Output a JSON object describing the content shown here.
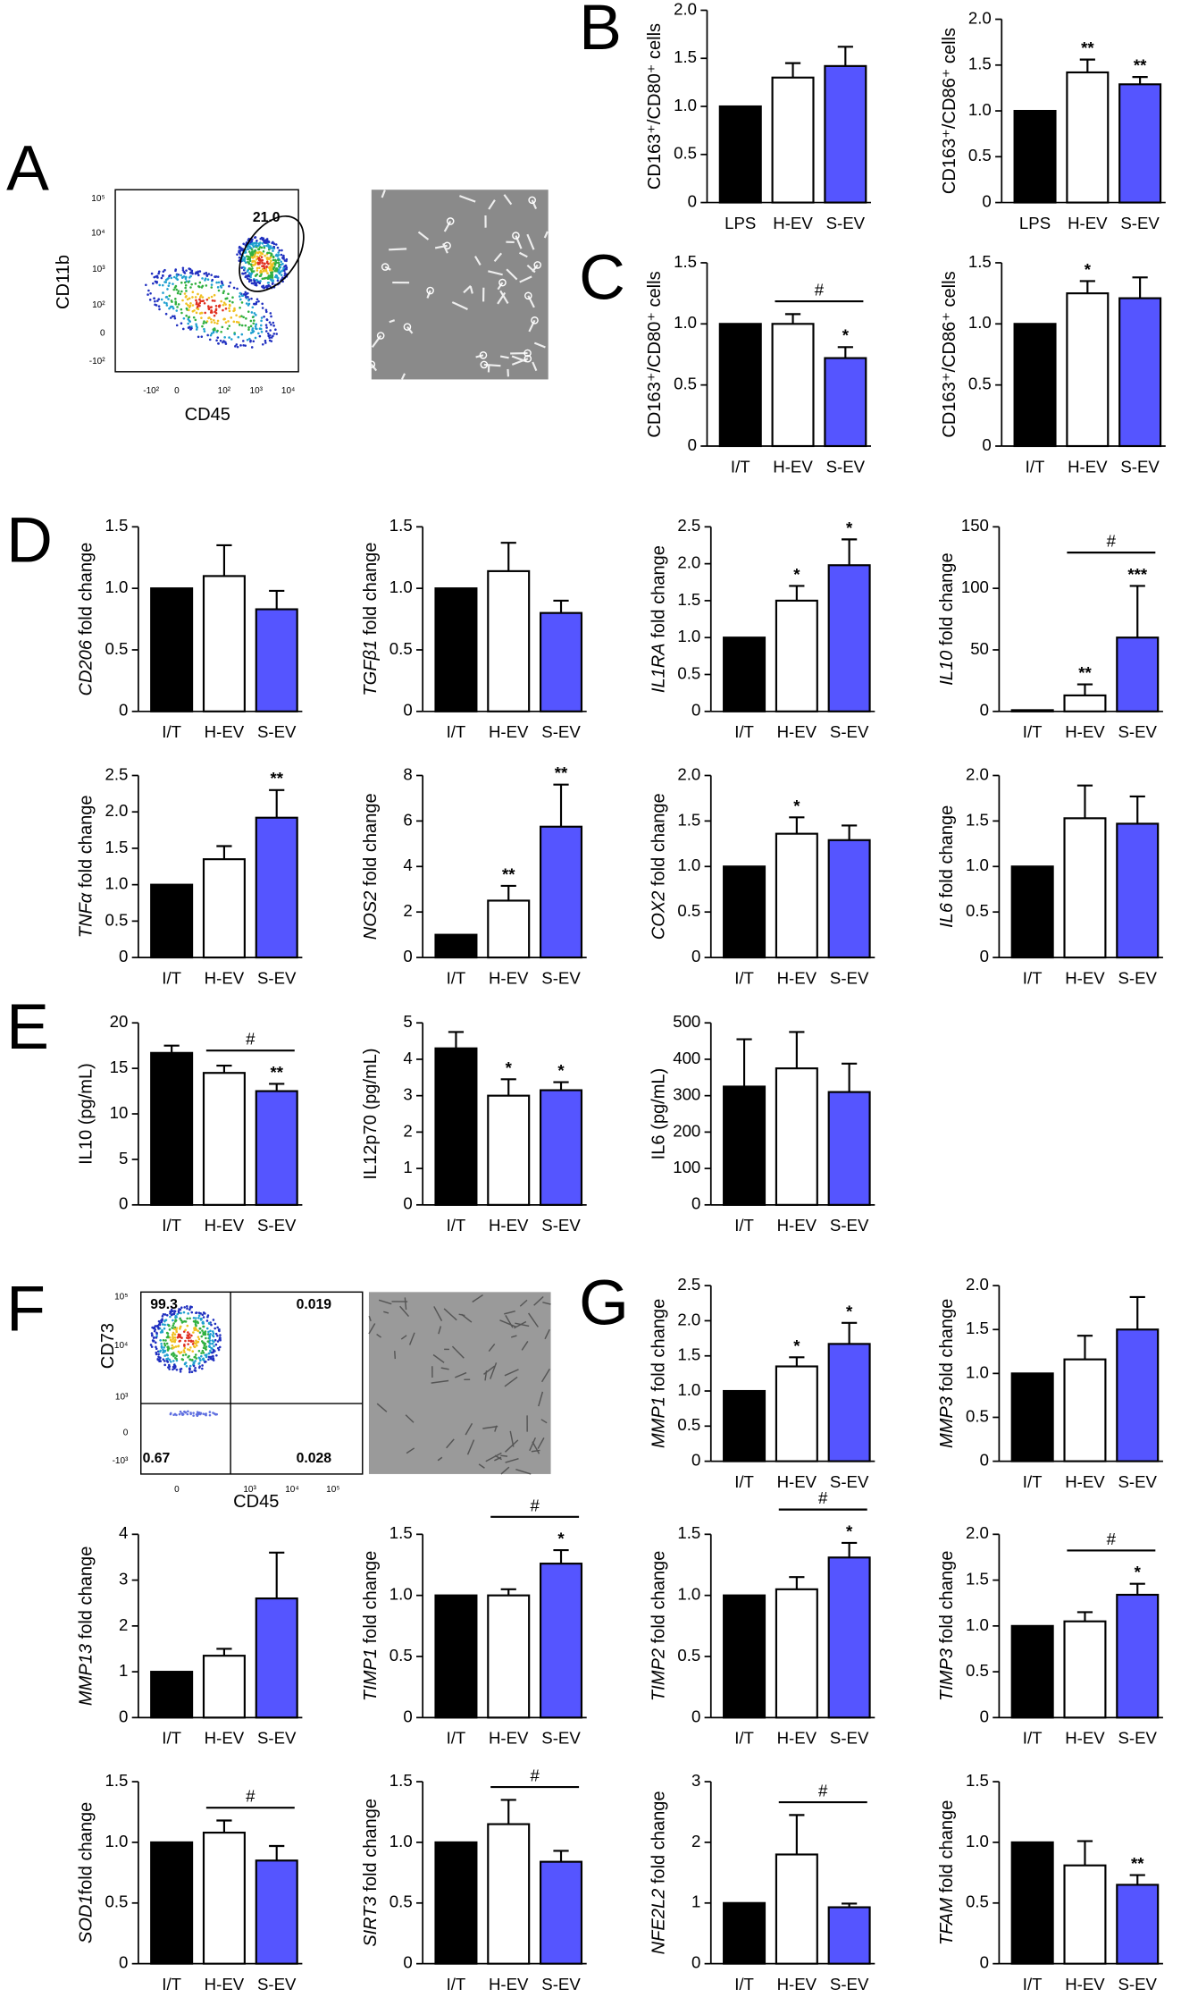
{
  "panel_labels": {
    "A": "A",
    "B": "B",
    "C": "C",
    "D": "D",
    "E": "E",
    "F": "F",
    "G": "G"
  },
  "flow_plots": [
    {
      "xlabel": "CD45",
      "ylabel": "CD11b",
      "xticks": [
        "-10²",
        "0",
        "10²",
        "10³",
        "10⁴"
      ],
      "yticks": [
        "10⁵",
        "10⁴",
        "10³",
        "10²",
        "0",
        "-10²"
      ],
      "gates": [
        "21.0"
      ]
    },
    {
      "xlabel": "CD45",
      "ylabel": "CD73",
      "xticks": [
        "0",
        "10³",
        "10⁴",
        "10⁵"
      ],
      "yticks": [
        "10⁵",
        "10⁴",
        "10³",
        "0",
        "-10³"
      ],
      "gates": [
        "99.3",
        "0.019",
        "0.67",
        "0.028"
      ]
    }
  ],
  "chart_data": [
    {
      "type": "bar",
      "ylabel": [
        "CD163⁺/CD80⁺ cells"
      ],
      "ylabel_italic": false,
      "categories": [
        "LPS",
        "H-EV",
        "S-EV"
      ],
      "values": [
        1.0,
        1.3,
        1.42
      ],
      "errors": [
        null,
        0.15,
        0.2
      ],
      "stars": [
        null,
        null,
        null
      ],
      "colors": [
        "#000000",
        "#ffffff",
        "#5555ff"
      ],
      "ylim": [
        0,
        2
      ],
      "yticks": [
        0,
        0.5,
        {
          "value": 1,
          "label": "1.0"
        },
        1.5,
        {
          "value": 2,
          "label": "2.0"
        }
      ]
    },
    {
      "type": "bar",
      "ylabel": [
        "CD163⁺/CD86⁺ cells"
      ],
      "ylabel_italic": false,
      "categories": [
        "LPS",
        "H-EV",
        "S-EV"
      ],
      "values": [
        1.0,
        1.42,
        1.29
      ],
      "errors": [
        null,
        0.14,
        0.08
      ],
      "stars": [
        null,
        "**",
        "**"
      ],
      "colors": [
        "#000000",
        "#ffffff",
        "#5555ff"
      ],
      "ylim": [
        0,
        2
      ],
      "yticks": [
        0,
        0.5,
        {
          "value": 1,
          "label": "1.0"
        },
        1.5,
        {
          "value": 2,
          "label": "2.0"
        }
      ]
    },
    {
      "type": "bar",
      "ylabel": [
        "CD163⁺/CD80⁺ cells"
      ],
      "ylabel_italic": false,
      "categories": [
        "I/T",
        "H-EV",
        "S-EV"
      ],
      "values": [
        1.0,
        1.0,
        0.72
      ],
      "errors": [
        null,
        0.08,
        0.09
      ],
      "stars": [
        null,
        null,
        "*"
      ],
      "bracket_label": "#",
      "colors": [
        "#000000",
        "#ffffff",
        "#5555ff"
      ],
      "ylim": [
        0,
        1.5
      ],
      "yticks": [
        0,
        0.5,
        {
          "value": 1,
          "label": "1.0"
        },
        1.5
      ]
    },
    {
      "type": "bar",
      "ylabel": [
        "CD163⁺/CD86⁺ cells"
      ],
      "ylabel_italic": false,
      "categories": [
        "I/T",
        "H-EV",
        "S-EV"
      ],
      "values": [
        1.0,
        1.25,
        1.21
      ],
      "errors": [
        null,
        0.1,
        0.17
      ],
      "stars": [
        null,
        "*",
        null
      ],
      "colors": [
        "#000000",
        "#ffffff",
        "#5555ff"
      ],
      "ylim": [
        0,
        1.5
      ],
      "yticks": [
        0,
        0.5,
        {
          "value": 1,
          "label": "1.0"
        },
        1.5
      ]
    },
    {
      "type": "bar",
      "ylabel": [
        "CD206",
        " fold change"
      ],
      "ylabel_italic": true,
      "categories": [
        "I/T",
        "H-EV",
        "S-EV"
      ],
      "values": [
        1.0,
        1.1,
        0.83
      ],
      "errors": [
        null,
        0.25,
        0.15
      ],
      "stars": [
        null,
        null,
        null
      ],
      "colors": [
        "#000000",
        "#ffffff",
        "#5555ff"
      ],
      "ylim": [
        0,
        1.5
      ],
      "yticks": [
        0,
        0.5,
        {
          "value": 1,
          "label": "1.0"
        },
        1.5
      ]
    },
    {
      "type": "bar",
      "ylabel": [
        "TGFβ1",
        " fold change"
      ],
      "ylabel_italic": true,
      "categories": [
        "I/T",
        "H-EV",
        "S-EV"
      ],
      "values": [
        1.0,
        1.14,
        0.8
      ],
      "errors": [
        null,
        0.23,
        0.1
      ],
      "stars": [
        null,
        null,
        null
      ],
      "colors": [
        "#000000",
        "#ffffff",
        "#5555ff"
      ],
      "ylim": [
        0,
        1.5
      ],
      "yticks": [
        0,
        0.5,
        {
          "value": 1,
          "label": "1.0"
        },
        1.5
      ]
    },
    {
      "type": "bar",
      "ylabel": [
        "IL1RA",
        " fold change"
      ],
      "ylabel_italic": true,
      "categories": [
        "I/T",
        "H-EV",
        "S-EV"
      ],
      "values": [
        1.0,
        1.5,
        1.98
      ],
      "errors": [
        null,
        0.2,
        0.35
      ],
      "stars": [
        null,
        "*",
        "*"
      ],
      "colors": [
        "#000000",
        "#ffffff",
        "#5555ff"
      ],
      "ylim": [
        0,
        2.5
      ],
      "yticks": [
        0,
        0.5,
        {
          "value": 1,
          "label": "1.0"
        },
        1.5,
        {
          "value": 2,
          "label": "2.0"
        },
        2.5
      ]
    },
    {
      "type": "bar",
      "ylabel": [
        "IL10",
        " fold change"
      ],
      "ylabel_italic": true,
      "categories": [
        "I/T",
        "H-EV",
        "S-EV"
      ],
      "values": [
        1,
        13,
        60
      ],
      "errors": [
        null,
        9,
        42
      ],
      "stars": [
        null,
        "**",
        "***"
      ],
      "bracket_label": "#",
      "colors": [
        "#000000",
        "#ffffff",
        "#5555ff"
      ],
      "ylim": [
        0,
        150
      ],
      "yticks": [
        0,
        50,
        100,
        150
      ]
    },
    {
      "type": "bar",
      "ylabel": [
        "TNFα",
        " fold change"
      ],
      "ylabel_italic": true,
      "categories": [
        "I/T",
        "H-EV",
        "S-EV"
      ],
      "values": [
        1.0,
        1.35,
        1.92
      ],
      "errors": [
        null,
        0.18,
        0.38
      ],
      "stars": [
        null,
        null,
        "**"
      ],
      "colors": [
        "#000000",
        "#ffffff",
        "#5555ff"
      ],
      "ylim": [
        0,
        2.5
      ],
      "yticks": [
        0,
        0.5,
        {
          "value": 1,
          "label": "1.0"
        },
        1.5,
        {
          "value": 2,
          "label": "2.0"
        },
        2.5
      ]
    },
    {
      "type": "bar",
      "ylabel": [
        "NOS2",
        " fold change"
      ],
      "ylabel_italic": true,
      "categories": [
        "I/T",
        "H-EV",
        "S-EV"
      ],
      "values": [
        1,
        2.5,
        5.75
      ],
      "errors": [
        null,
        0.65,
        1.85
      ],
      "stars": [
        null,
        "**",
        "**"
      ],
      "colors": [
        "#000000",
        "#ffffff",
        "#5555ff"
      ],
      "ylim": [
        0,
        8
      ],
      "yticks": [
        0,
        2,
        4,
        6,
        8
      ]
    },
    {
      "type": "bar",
      "ylabel": [
        "COX2",
        " fold change"
      ],
      "ylabel_italic": true,
      "categories": [
        "I/T",
        "H-EV",
        "S-EV"
      ],
      "values": [
        1.0,
        1.36,
        1.29
      ],
      "errors": [
        null,
        0.18,
        0.16
      ],
      "stars": [
        null,
        "*",
        null
      ],
      "colors": [
        "#000000",
        "#ffffff",
        "#5555ff"
      ],
      "ylim": [
        0,
        2
      ],
      "yticks": [
        0,
        0.5,
        {
          "value": 1,
          "label": "1.0"
        },
        1.5,
        {
          "value": 2,
          "label": "2.0"
        }
      ]
    },
    {
      "type": "bar",
      "ylabel": [
        "IL6",
        " fold change"
      ],
      "ylabel_italic": true,
      "categories": [
        "I/T",
        "H-EV",
        "S-EV"
      ],
      "values": [
        1.0,
        1.53,
        1.47
      ],
      "errors": [
        null,
        0.36,
        0.3
      ],
      "stars": [
        null,
        null,
        null
      ],
      "colors": [
        "#000000",
        "#ffffff",
        "#5555ff"
      ],
      "ylim": [
        0,
        2
      ],
      "yticks": [
        0,
        0.5,
        {
          "value": 1,
          "label": "1.0"
        },
        1.5,
        {
          "value": 2,
          "label": "2.0"
        }
      ]
    },
    {
      "type": "bar",
      "ylabel": [
        "IL10 (pg/mL)"
      ],
      "ylabel_italic": false,
      "categories": [
        "I/T",
        "H-EV",
        "S-EV"
      ],
      "values": [
        16.7,
        14.5,
        12.5
      ],
      "errors": [
        0.8,
        0.8,
        0.8
      ],
      "stars": [
        null,
        null,
        "**"
      ],
      "bracket_label": "#",
      "colors": [
        "#000000",
        "#ffffff",
        "#5555ff"
      ],
      "ylim": [
        0,
        20
      ],
      "yticks": [
        0,
        5,
        10,
        15,
        20
      ]
    },
    {
      "type": "bar",
      "ylabel": [
        "IL12p70 (pg/mL)"
      ],
      "ylabel_italic": false,
      "categories": [
        "I/T",
        "H-EV",
        "S-EV"
      ],
      "values": [
        4.3,
        3.0,
        3.15
      ],
      "errors": [
        0.45,
        0.45,
        0.22
      ],
      "stars": [
        null,
        "*",
        "*"
      ],
      "colors": [
        "#000000",
        "#ffffff",
        "#5555ff"
      ],
      "ylim": [
        0,
        5
      ],
      "yticks": [
        0,
        1,
        2,
        3,
        4,
        5
      ]
    },
    {
      "type": "bar",
      "ylabel": [
        "IL6 (pg/mL)"
      ],
      "ylabel_italic": false,
      "categories": [
        "I/T",
        "H-EV",
        "S-EV"
      ],
      "values": [
        325,
        375,
        310
      ],
      "errors": [
        130,
        100,
        78
      ],
      "stars": [
        null,
        null,
        null
      ],
      "colors": [
        "#000000",
        "#ffffff",
        "#5555ff"
      ],
      "ylim": [
        0,
        500
      ],
      "yticks": [
        0,
        100,
        200,
        300,
        400,
        500
      ]
    },
    {
      "type": "bar",
      "ylabel": [
        "MMP1",
        " fold change"
      ],
      "ylabel_italic": true,
      "categories": [
        "I/T",
        "H-EV",
        "S-EV"
      ],
      "values": [
        1.0,
        1.35,
        1.67
      ],
      "errors": [
        null,
        0.13,
        0.3
      ],
      "stars": [
        null,
        "*",
        "*"
      ],
      "colors": [
        "#000000",
        "#ffffff",
        "#5555ff"
      ],
      "ylim": [
        0,
        2.5
      ],
      "yticks": [
        0,
        0.5,
        {
          "value": 1,
          "label": "1.0"
        },
        1.5,
        {
          "value": 2,
          "label": "2.0"
        },
        2.5
      ]
    },
    {
      "type": "bar",
      "ylabel": [
        "MMP3",
        " fold change"
      ],
      "ylabel_italic": true,
      "categories": [
        "I/T",
        "H-EV",
        "S-EV"
      ],
      "values": [
        1.0,
        1.16,
        1.5
      ],
      "errors": [
        null,
        0.27,
        0.37
      ],
      "stars": [
        null,
        null,
        null
      ],
      "colors": [
        "#000000",
        "#ffffff",
        "#5555ff"
      ],
      "ylim": [
        0,
        2
      ],
      "yticks": [
        0,
        0.5,
        {
          "value": 1,
          "label": "1.0"
        },
        1.5,
        {
          "value": 2,
          "label": "2.0"
        }
      ]
    },
    {
      "type": "bar",
      "ylabel": [
        "MMP13",
        " fold change"
      ],
      "ylabel_italic": true,
      "categories": [
        "I/T",
        "H-EV",
        "S-EV"
      ],
      "values": [
        1,
        1.35,
        2.6
      ],
      "errors": [
        null,
        0.15,
        1.0
      ],
      "stars": [
        null,
        null,
        null
      ],
      "colors": [
        "#000000",
        "#ffffff",
        "#5555ff"
      ],
      "ylim": [
        0,
        4
      ],
      "yticks": [
        0,
        1,
        2,
        3,
        4
      ]
    },
    {
      "type": "bar",
      "ylabel": [
        "TIMP1",
        " fold change"
      ],
      "ylabel_italic": true,
      "categories": [
        "I/T",
        "H-EV",
        "S-EV"
      ],
      "values": [
        1.0,
        1.0,
        1.26
      ],
      "errors": [
        null,
        0.05,
        0.11
      ],
      "stars": [
        null,
        null,
        "*"
      ],
      "bracket_label": "#",
      "colors": [
        "#000000",
        "#ffffff",
        "#5555ff"
      ],
      "ylim": [
        0,
        1.5
      ],
      "yticks": [
        0,
        0.5,
        {
          "value": 1,
          "label": "1.0"
        },
        1.5
      ]
    },
    {
      "type": "bar",
      "ylabel": [
        "TIMP2",
        " fold change"
      ],
      "ylabel_italic": true,
      "categories": [
        "I/T",
        "H-EV",
        "S-EV"
      ],
      "values": [
        1.0,
        1.05,
        1.31
      ],
      "errors": [
        null,
        0.1,
        0.12
      ],
      "stars": [
        null,
        null,
        "*"
      ],
      "bracket_label": "#",
      "colors": [
        "#000000",
        "#ffffff",
        "#5555ff"
      ],
      "ylim": [
        0,
        1.5
      ],
      "yticks": [
        0,
        0.5,
        {
          "value": 1,
          "label": "1.0"
        },
        1.5
      ]
    },
    {
      "type": "bar",
      "ylabel": [
        "TIMP3",
        " fold change"
      ],
      "ylabel_italic": true,
      "categories": [
        "I/T",
        "H-EV",
        "S-EV"
      ],
      "values": [
        1.0,
        1.05,
        1.34
      ],
      "errors": [
        null,
        0.1,
        0.12
      ],
      "stars": [
        null,
        null,
        "*"
      ],
      "bracket_label": "#",
      "colors": [
        "#000000",
        "#ffffff",
        "#5555ff"
      ],
      "ylim": [
        0,
        2
      ],
      "yticks": [
        0,
        0.5,
        {
          "value": 1,
          "label": "1.0"
        },
        1.5,
        {
          "value": 2,
          "label": "2.0"
        }
      ]
    },
    {
      "type": "bar",
      "ylabel": [
        "SOD1",
        "fold change"
      ],
      "ylabel_italic": true,
      "categories": [
        "I/T",
        "H-EV",
        "S-EV"
      ],
      "values": [
        1.0,
        1.08,
        0.85
      ],
      "errors": [
        null,
        0.1,
        0.12
      ],
      "stars": [
        null,
        null,
        null
      ],
      "bracket_label": "#",
      "colors": [
        "#000000",
        "#ffffff",
        "#5555ff"
      ],
      "ylim": [
        0,
        1.5
      ],
      "yticks": [
        0,
        0.5,
        {
          "value": 1,
          "label": "1.0"
        },
        1.5
      ]
    },
    {
      "type": "bar",
      "ylabel": [
        "SIRT3",
        " fold change"
      ],
      "ylabel_italic": true,
      "categories": [
        "I/T",
        "H-EV",
        "S-EV"
      ],
      "values": [
        1.0,
        1.15,
        0.84
      ],
      "errors": [
        null,
        0.2,
        0.09
      ],
      "stars": [
        null,
        null,
        null
      ],
      "bracket_label": "#",
      "colors": [
        "#000000",
        "#ffffff",
        "#5555ff"
      ],
      "ylim": [
        0,
        1.5
      ],
      "yticks": [
        0,
        0.5,
        {
          "value": 1,
          "label": "1.0"
        },
        1.5
      ]
    },
    {
      "type": "bar",
      "ylabel": [
        "NFE2L2",
        " fold change"
      ],
      "ylabel_italic": true,
      "categories": [
        "I/T",
        "H-EV",
        "S-EV"
      ],
      "values": [
        1,
        1.8,
        0.93
      ],
      "errors": [
        null,
        0.65,
        0.06
      ],
      "stars": [
        null,
        null,
        null
      ],
      "bracket_label": "#",
      "colors": [
        "#000000",
        "#ffffff",
        "#5555ff"
      ],
      "ylim": [
        0,
        3
      ],
      "yticks": [
        0,
        1,
        2,
        3
      ]
    },
    {
      "type": "bar",
      "ylabel": [
        "TFAM",
        " fold change"
      ],
      "ylabel_italic": true,
      "categories": [
        "I/T",
        "H-EV",
        "S-EV"
      ],
      "values": [
        1.0,
        0.81,
        0.65
      ],
      "errors": [
        null,
        0.2,
        0.08
      ],
      "stars": [
        null,
        null,
        "**"
      ],
      "colors": [
        "#000000",
        "#ffffff",
        "#5555ff"
      ],
      "ylim": [
        0,
        1.5
      ],
      "yticks": [
        0,
        0.5,
        {
          "value": 1,
          "label": "1.0"
        },
        1.5
      ]
    }
  ]
}
